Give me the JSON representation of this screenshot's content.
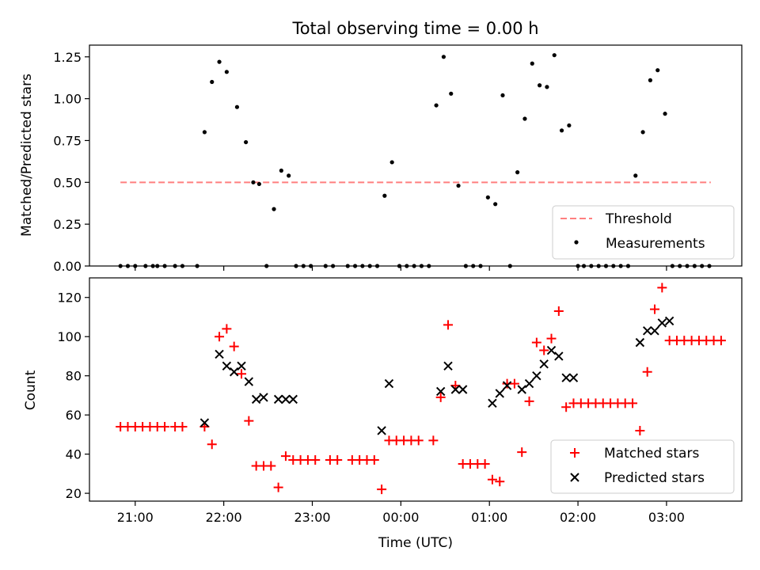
{
  "title": "Total observing time = 0.00 h",
  "xlabel": "Time (UTC)",
  "x_ticks": [
    "21:00",
    "22:00",
    "23:00",
    "00:00",
    "01:00",
    "02:00",
    "03:00"
  ],
  "chart_data": [
    {
      "type": "scatter",
      "ylabel": "Matched/Predicted stars",
      "ylim": [
        0,
        1.32
      ],
      "xlim": [
        "20:29",
        "03:51"
      ],
      "y_ticks": [
        "0.00",
        "0.25",
        "0.50",
        "0.75",
        "1.00",
        "1.25"
      ],
      "y_tick_values": [
        0,
        0.25,
        0.5,
        0.75,
        1.0,
        1.25
      ],
      "legend_position": "lower-right",
      "threshold": {
        "name": "Threshold",
        "color": "#ff7f7f",
        "y": 0.5,
        "x_start": "20:50",
        "x_end": "03:30"
      },
      "series": [
        {
          "name": "Measurements",
          "color": "#000000",
          "points": [
            [
              "20:50",
              0
            ],
            [
              "20:55",
              0
            ],
            [
              "21:00",
              0
            ],
            [
              "21:07",
              0
            ],
            [
              "21:12",
              0
            ],
            [
              "21:15",
              0
            ],
            [
              "21:20",
              0
            ],
            [
              "21:27",
              0
            ],
            [
              "21:32",
              0
            ],
            [
              "21:42",
              0
            ],
            [
              "21:47",
              0.8
            ],
            [
              "21:52",
              1.1
            ],
            [
              "21:57",
              1.22
            ],
            [
              "22:02",
              1.16
            ],
            [
              "22:09",
              0.95
            ],
            [
              "22:15",
              0.74
            ],
            [
              "22:20",
              0.5
            ],
            [
              "22:24",
              0.49
            ],
            [
              "22:29",
              0
            ],
            [
              "22:34",
              0.34
            ],
            [
              "22:39",
              0.57
            ],
            [
              "22:44",
              0.54
            ],
            [
              "22:49",
              0
            ],
            [
              "22:54",
              0
            ],
            [
              "22:59",
              0
            ],
            [
              "23:09",
              0
            ],
            [
              "23:14",
              0
            ],
            [
              "23:24",
              0
            ],
            [
              "23:29",
              0
            ],
            [
              "23:34",
              0
            ],
            [
              "23:39",
              0
            ],
            [
              "23:44",
              0
            ],
            [
              "23:49",
              0.42
            ],
            [
              "23:54",
              0.62
            ],
            [
              "23:59",
              0
            ],
            [
              "00:04",
              0
            ],
            [
              "00:09",
              0
            ],
            [
              "00:14",
              0
            ],
            [
              "00:19",
              0
            ],
            [
              "00:24",
              0.96
            ],
            [
              "00:29",
              1.25
            ],
            [
              "00:34",
              1.03
            ],
            [
              "00:39",
              0.48
            ],
            [
              "00:44",
              0
            ],
            [
              "00:49",
              0
            ],
            [
              "00:54",
              0
            ],
            [
              "00:59",
              0.41
            ],
            [
              "01:04",
              0.37
            ],
            [
              "01:09",
              1.02
            ],
            [
              "01:14",
              0
            ],
            [
              "01:19",
              0.56
            ],
            [
              "01:24",
              0.88
            ],
            [
              "01:29",
              1.21
            ],
            [
              "01:34",
              1.08
            ],
            [
              "01:39",
              1.07
            ],
            [
              "01:44",
              1.26
            ],
            [
              "01:49",
              0.81
            ],
            [
              "01:54",
              0.84
            ],
            [
              "02:00",
              0
            ],
            [
              "02:04",
              0
            ],
            [
              "02:09",
              0
            ],
            [
              "02:14",
              0
            ],
            [
              "02:19",
              0
            ],
            [
              "02:24",
              0
            ],
            [
              "02:29",
              0
            ],
            [
              "02:34",
              0
            ],
            [
              "02:39",
              0.54
            ],
            [
              "02:44",
              0.8
            ],
            [
              "02:49",
              1.11
            ],
            [
              "02:54",
              1.17
            ],
            [
              "02:59",
              0.91
            ],
            [
              "03:04",
              0
            ],
            [
              "03:09",
              0
            ],
            [
              "03:14",
              0
            ],
            [
              "03:19",
              0
            ],
            [
              "03:24",
              0
            ],
            [
              "03:29",
              0
            ]
          ]
        }
      ]
    },
    {
      "type": "scatter",
      "ylabel": "Count",
      "ylim": [
        16,
        130
      ],
      "xlim": [
        "20:29",
        "03:51"
      ],
      "y_ticks": [
        "20",
        "40",
        "60",
        "80",
        "100",
        "120"
      ],
      "y_tick_values": [
        20,
        40,
        60,
        80,
        100,
        120
      ],
      "legend_position": "lower-right",
      "series": [
        {
          "name": "Matched stars",
          "color": "#ff0000",
          "marker": "+",
          "points": [
            [
              "20:50",
              54
            ],
            [
              "20:55",
              54
            ],
            [
              "21:00",
              54
            ],
            [
              "21:05",
              54
            ],
            [
              "21:10",
              54
            ],
            [
              "21:15",
              54
            ],
            [
              "21:20",
              54
            ],
            [
              "21:27",
              54
            ],
            [
              "21:32",
              54
            ],
            [
              "21:47",
              54
            ],
            [
              "21:52",
              45
            ],
            [
              "21:57",
              100
            ],
            [
              "22:02",
              104
            ],
            [
              "22:07",
              95
            ],
            [
              "22:12",
              81
            ],
            [
              "22:17",
              57
            ],
            [
              "22:22",
              34
            ],
            [
              "22:27",
              34
            ],
            [
              "22:32",
              34
            ],
            [
              "22:37",
              23
            ],
            [
              "22:42",
              39
            ],
            [
              "22:47",
              37
            ],
            [
              "22:52",
              37
            ],
            [
              "22:57",
              37
            ],
            [
              "23:02",
              37
            ],
            [
              "23:12",
              37
            ],
            [
              "23:17",
              37
            ],
            [
              "23:27",
              37
            ],
            [
              "23:32",
              37
            ],
            [
              "23:37",
              37
            ],
            [
              "23:42",
              37
            ],
            [
              "23:47",
              22
            ],
            [
              "23:52",
              47
            ],
            [
              "23:57",
              47
            ],
            [
              "00:02",
              47
            ],
            [
              "00:07",
              47
            ],
            [
              "00:12",
              47
            ],
            [
              "00:22",
              47
            ],
            [
              "00:27",
              69
            ],
            [
              "00:32",
              106
            ],
            [
              "00:37",
              75
            ],
            [
              "00:42",
              35
            ],
            [
              "00:47",
              35
            ],
            [
              "00:52",
              35
            ],
            [
              "00:57",
              35
            ],
            [
              "01:02",
              27
            ],
            [
              "01:07",
              26
            ],
            [
              "01:12",
              76
            ],
            [
              "01:17",
              76
            ],
            [
              "01:22",
              41
            ],
            [
              "01:27",
              67
            ],
            [
              "01:32",
              97
            ],
            [
              "01:37",
              93
            ],
            [
              "01:42",
              99
            ],
            [
              "01:47",
              113
            ],
            [
              "01:52",
              64
            ],
            [
              "01:57",
              66
            ],
            [
              "02:02",
              66
            ],
            [
              "02:07",
              66
            ],
            [
              "02:12",
              66
            ],
            [
              "02:17",
              66
            ],
            [
              "02:22",
              66
            ],
            [
              "02:27",
              66
            ],
            [
              "02:32",
              66
            ],
            [
              "02:37",
              66
            ],
            [
              "02:42",
              52
            ],
            [
              "02:47",
              82
            ],
            [
              "02:52",
              114
            ],
            [
              "02:57",
              125
            ],
            [
              "03:02",
              98
            ],
            [
              "03:07",
              98
            ],
            [
              "03:12",
              98
            ],
            [
              "03:17",
              98
            ],
            [
              "03:22",
              98
            ],
            [
              "03:27",
              98
            ],
            [
              "03:32",
              98
            ],
            [
              "03:37",
              98
            ]
          ]
        },
        {
          "name": "Predicted stars",
          "color": "#000000",
          "marker": "x",
          "points": [
            [
              "21:47",
              56
            ],
            [
              "21:57",
              91
            ],
            [
              "22:02",
              85
            ],
            [
              "22:07",
              82
            ],
            [
              "22:12",
              85
            ],
            [
              "22:17",
              77
            ],
            [
              "22:22",
              68
            ],
            [
              "22:27",
              69
            ],
            [
              "22:37",
              68
            ],
            [
              "22:42",
              68
            ],
            [
              "22:47",
              68
            ],
            [
              "23:47",
              52
            ],
            [
              "23:52",
              76
            ],
            [
              "00:27",
              72
            ],
            [
              "00:32",
              85
            ],
            [
              "00:37",
              73
            ],
            [
              "00:42",
              73
            ],
            [
              "01:02",
              66
            ],
            [
              "01:07",
              71
            ],
            [
              "01:12",
              75
            ],
            [
              "01:22",
              73
            ],
            [
              "01:27",
              76
            ],
            [
              "01:32",
              80
            ],
            [
              "01:37",
              86
            ],
            [
              "01:42",
              93
            ],
            [
              "01:47",
              90
            ],
            [
              "01:52",
              79
            ],
            [
              "01:57",
              79
            ],
            [
              "02:42",
              97
            ],
            [
              "02:47",
              103
            ],
            [
              "02:52",
              103
            ],
            [
              "02:57",
              107
            ],
            [
              "03:02",
              108
            ]
          ]
        }
      ]
    }
  ]
}
